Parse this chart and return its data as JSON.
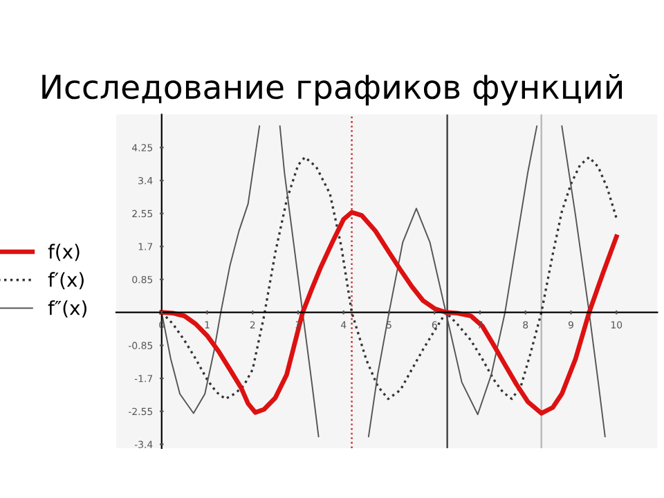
{
  "chart_data": {
    "type": "line",
    "title": "Исследование графиков функций",
    "xlim": [
      -1,
      10.9
    ],
    "ylim": [
      -3.5,
      5.1
    ],
    "xticks": [
      0,
      1,
      2,
      3,
      4,
      5,
      6,
      7,
      8,
      9,
      10
    ],
    "yticks": [
      -3.4,
      -2.55,
      -1.7,
      -0.85,
      0.85,
      1.7,
      2.55,
      3.4,
      4.25
    ],
    "grid": false,
    "legend": "left",
    "marker": "none",
    "series": [
      {
        "name": "f(x)",
        "color": "#dd1111",
        "line_style": "solid",
        "x": [
          0,
          0.25,
          0.5,
          0.75,
          1,
          1.25,
          1.5,
          1.75,
          1.9,
          2.06,
          2.25,
          2.5,
          2.75,
          3.1,
          3.3,
          3.5,
          3.75,
          4.0,
          4.18,
          4.4,
          4.7,
          5.0,
          5.25,
          5.5,
          5.75,
          6.0,
          6.25,
          6.5,
          6.8,
          7.05,
          7.3,
          7.55,
          7.8,
          8.05,
          8.35,
          8.6,
          8.8,
          9.1,
          9.4,
          9.7,
          10
        ],
        "values": [
          0,
          -0.02,
          -0.09,
          -0.3,
          -0.6,
          -1.0,
          -1.47,
          -1.95,
          -2.35,
          -2.58,
          -2.5,
          -2.2,
          -1.6,
          0,
          0.6,
          1.17,
          1.8,
          2.4,
          2.58,
          2.5,
          2.1,
          1.55,
          1.1,
          0.67,
          0.3,
          0.1,
          0,
          -0.02,
          -0.09,
          -0.35,
          -0.84,
          -1.35,
          -1.85,
          -2.3,
          -2.6,
          -2.45,
          -2.1,
          -1.2,
          0,
          1.0,
          1.95
        ]
      },
      {
        "name": "f′(x)",
        "color": "#333333",
        "line_style": "dotted",
        "x": [
          0,
          0.25,
          0.5,
          0.75,
          1,
          1.2,
          1.4,
          1.6,
          1.8,
          2.0,
          2.25,
          2.5,
          2.75,
          3.0,
          3.15,
          3.4,
          3.7,
          3.95,
          4.18,
          4.5,
          4.75,
          4.98,
          5.25,
          5.5,
          5.75,
          6.0,
          6.25,
          6.5,
          6.8,
          7.05,
          7.3,
          7.5,
          7.7,
          7.9,
          8.1,
          8.35,
          8.6,
          8.8,
          9.0,
          9.2,
          9.4,
          9.6,
          9.8,
          10
        ],
        "values": [
          0,
          -0.3,
          -0.72,
          -1.2,
          -1.73,
          -2.05,
          -2.23,
          -2.1,
          -1.9,
          -1.47,
          -0.1,
          1.55,
          2.9,
          3.8,
          4.0,
          3.75,
          3.06,
          1.7,
          0,
          -1.22,
          -1.9,
          -2.23,
          -2.0,
          -1.47,
          -0.95,
          -0.47,
          0,
          -0.3,
          -0.72,
          -1.2,
          -1.73,
          -2.05,
          -2.23,
          -1.9,
          -1.1,
          0,
          1.5,
          2.6,
          3.31,
          3.8,
          4.0,
          3.75,
          3.2,
          2.43
        ]
      },
      {
        "name": "f″(x)",
        "color": "#555555",
        "line_style": "solid",
        "x": [
          0,
          0.2,
          0.4,
          0.7,
          0.95,
          1.15,
          1.3,
          1.5,
          1.7,
          1.9,
          2.05,
          2.15,
          2.4,
          2.6,
          2.7,
          2.9,
          3.1,
          3.3,
          3.45,
          4.0,
          4.55,
          4.75,
          5.0,
          5.3,
          5.6,
          5.9,
          6.25,
          6.6,
          6.95,
          7.25,
          7.55,
          7.8,
          8.05,
          8.25,
          8.5,
          8.8,
          9.1,
          9.4,
          9.6,
          9.75
        ],
        "values": [
          0,
          -1.2,
          -2.1,
          -2.6,
          -2.1,
          -1.0,
          0,
          1.2,
          2.1,
          2.8,
          4.0,
          4.8,
          null,
          4.8,
          3.6,
          1.8,
          0,
          -1.8,
          -3.2,
          null,
          -3.2,
          -1.6,
          0,
          1.8,
          2.68,
          1.8,
          0,
          -1.8,
          -2.63,
          -1.6,
          0,
          1.8,
          3.6,
          4.8,
          null,
          4.8,
          2.5,
          0,
          -1.8,
          -3.2
        ]
      }
    ],
    "ref_lines": [
      {
        "axis": "x",
        "value": 4.18,
        "color": "#cc3333",
        "line_style": "dotted"
      },
      {
        "axis": "x",
        "value": 6.28,
        "color": "#444444",
        "line_style": "solid"
      },
      {
        "axis": "x",
        "value": 8.35,
        "color": "#bbbbbb",
        "line_style": "solid"
      }
    ]
  }
}
